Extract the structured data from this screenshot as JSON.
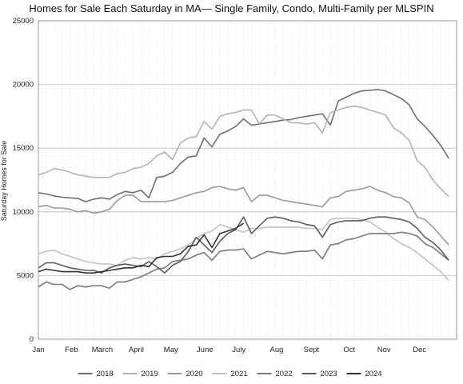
{
  "chart_data": {
    "type": "line",
    "title": "Homes for Sale Each Saturday in MA— Single Family, Condo, Multi-Family per MLSPIN",
    "ylabel": "Saturday Homes for Sale",
    "xlabel": "",
    "ylim": [
      0,
      25000
    ],
    "yticks": [
      0,
      5000,
      10000,
      15000,
      20000,
      25000
    ],
    "xlim": [
      0,
      53
    ],
    "month_ticks": [
      {
        "label": "Jan",
        "week": 0
      },
      {
        "label": "Feb",
        "week": 4.2
      },
      {
        "label": "March",
        "week": 8.1
      },
      {
        "label": "April",
        "week": 12.4
      },
      {
        "label": "May",
        "week": 16.8
      },
      {
        "label": "June",
        "week": 21.1
      },
      {
        "label": "July",
        "week": 25.4
      },
      {
        "label": "Aug",
        "week": 30.2
      },
      {
        "label": "Sept",
        "week": 34.6
      },
      {
        "label": "Oct",
        "week": 39.4
      },
      {
        "label": "Nov",
        "week": 43.8
      },
      {
        "label": "Dec",
        "week": 48.3
      }
    ],
    "grid": "horizontal lines plus dotted weekly verticals",
    "legend_position": "bottom",
    "series": [
      {
        "name": "2018",
        "color": "#6e6e6e",
        "values": [
          11500,
          11400,
          11250,
          11150,
          11100,
          11050,
          10800,
          11000,
          11100,
          11000,
          11350,
          11600,
          11500,
          11700,
          11100,
          12700,
          12800,
          13100,
          13800,
          14300,
          14400,
          15800,
          15100,
          16100,
          16350,
          16700,
          17300,
          16800,
          16900,
          17000,
          17100,
          17200,
          17250,
          17400,
          17500,
          17600,
          17700,
          16800,
          18700,
          19000,
          19300,
          19500,
          19550,
          19600,
          19500,
          19200,
          18900,
          18400,
          17300,
          16700,
          16000,
          15200,
          14200
        ]
      },
      {
        "name": "2019",
        "color": "#b3b3b3",
        "values": [
          12900,
          13100,
          13400,
          13300,
          13100,
          12900,
          12800,
          12700,
          12700,
          12700,
          13000,
          13100,
          13400,
          13500,
          13800,
          14400,
          14700,
          14100,
          15400,
          15800,
          15900,
          17100,
          16500,
          17500,
          17700,
          17800,
          18000,
          18000,
          16900,
          17600,
          17600,
          17300,
          17000,
          17000,
          16900,
          17000,
          16200,
          17800,
          18000,
          18200,
          18300,
          18200,
          18000,
          17800,
          17600,
          16600,
          16200,
          15600,
          14000,
          13500,
          12500,
          11800,
          11200
        ]
      },
      {
        "name": "2020",
        "color": "#9a9a9a",
        "values": [
          10400,
          10500,
          10300,
          10300,
          10200,
          10000,
          10100,
          9900,
          10000,
          10200,
          10900,
          11300,
          11300,
          10800,
          10800,
          10800,
          10800,
          10900,
          11100,
          11300,
          11500,
          11600,
          11900,
          12000,
          11800,
          11700,
          11900,
          10800,
          11300,
          11300,
          11100,
          10900,
          10800,
          10700,
          10600,
          10500,
          10400,
          11100,
          11200,
          11600,
          11700,
          11800,
          12000,
          11700,
          11500,
          11200,
          11100,
          10700,
          9600,
          9400,
          8800,
          8100,
          7400
        ]
      },
      {
        "name": "2021",
        "color": "#c2c2c2",
        "values": [
          6700,
          6900,
          7000,
          6700,
          6500,
          6300,
          6100,
          6000,
          5900,
          5900,
          5800,
          6200,
          6400,
          6300,
          6400,
          6300,
          6700,
          6900,
          7100,
          7400,
          7900,
          8300,
          8500,
          9000,
          8800,
          8600,
          8400,
          8700,
          8700,
          8800,
          8800,
          8800,
          8800,
          8800,
          8700,
          8700,
          8600,
          9400,
          9500,
          9500,
          9500,
          9400,
          9200,
          8800,
          8400,
          7900,
          7500,
          7200,
          6800,
          6300,
          5800,
          5300,
          4600
        ]
      },
      {
        "name": "2022",
        "color": "#7a7a7a",
        "values": [
          4100,
          4500,
          4300,
          4300,
          3900,
          4200,
          4100,
          4200,
          4200,
          4000,
          4500,
          4500,
          4700,
          4900,
          5200,
          5500,
          5600,
          6100,
          6200,
          6300,
          6600,
          6800,
          6200,
          6900,
          7000,
          7000,
          7100,
          6300,
          6600,
          6900,
          6800,
          6700,
          6800,
          6900,
          6900,
          7000,
          6300,
          7400,
          7500,
          7800,
          7900,
          8100,
          8300,
          8300,
          8300,
          8300,
          8400,
          8300,
          8100,
          7500,
          7200,
          6700,
          6200
        ]
      },
      {
        "name": "2023",
        "color": "#5c5c5c",
        "values": [
          5600,
          6000,
          6000,
          5800,
          5600,
          5500,
          5400,
          5400,
          5200,
          5600,
          5800,
          5900,
          5800,
          5700,
          6100,
          5700,
          5200,
          5800,
          6100,
          6900,
          8000,
          7400,
          6800,
          7700,
          8300,
          8600,
          9600,
          8300,
          8900,
          9500,
          9600,
          9500,
          9300,
          9200,
          9000,
          8900,
          8000,
          9000,
          9200,
          9300,
          9300,
          9300,
          9500,
          9600,
          9600,
          9500,
          9400,
          9200,
          8700,
          8000,
          7600,
          7000,
          6200
        ]
      },
      {
        "name": "2024",
        "color": "#333333",
        "values": [
          5300,
          5500,
          5400,
          5300,
          5300,
          5300,
          5200,
          5200,
          5300,
          5400,
          5500,
          5600,
          5600,
          5800,
          5700,
          6400,
          6500,
          6500,
          6700,
          7300,
          7400,
          8200,
          7200,
          8300,
          8500,
          8700,
          9100
        ]
      }
    ]
  }
}
